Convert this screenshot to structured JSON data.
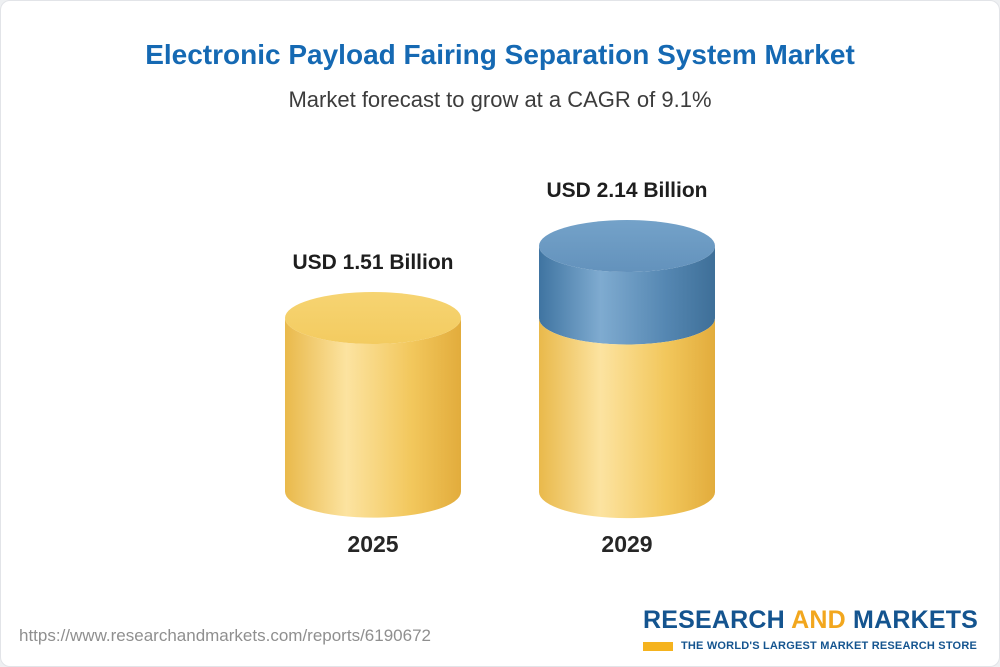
{
  "header": {
    "title": "Electronic Payload Fairing Separation System Market",
    "subtitle": "Market forecast to grow at a CAGR of 9.1%"
  },
  "chart_data": {
    "type": "bar",
    "variant": "3d-cylinder",
    "title": "Electronic Payload Fairing Separation System Market",
    "subtitle": "Market forecast to grow at a CAGR of 9.1%",
    "cagr_percent": 9.1,
    "unit": "USD Billion",
    "categories": [
      "2025",
      "2029"
    ],
    "values": [
      1.51,
      2.14
    ],
    "value_labels": [
      "USD 1.51 Billion",
      "USD 2.14 Billion"
    ],
    "series_colors": {
      "base": "#F6CE63",
      "growth": "#5B8DB8"
    },
    "legend": "none",
    "notes": "2029 cylinder shows the 2025 base value in yellow with the growth portion stacked in blue on top"
  },
  "footer": {
    "url": "https://www.researchandmarkets.com/reports/6190672",
    "logo": {
      "word1": "RESEARCH",
      "word2": "AND",
      "word3": "MARKETS",
      "tagline": "THE WORLD'S LARGEST MARKET RESEARCH STORE"
    }
  },
  "colors": {
    "title_blue": "#1569B3",
    "logo_blue": "#14548F",
    "logo_orange": "#F2A71E",
    "bar_yellow": "#F6CE63",
    "bar_blue": "#5B8DB8"
  }
}
